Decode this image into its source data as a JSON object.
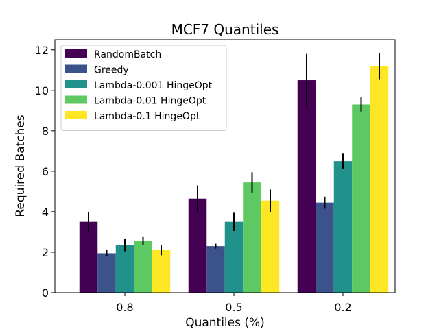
{
  "chart_data": {
    "type": "bar",
    "title": "MCF7 Quantiles",
    "xlabel": "Quantiles (%)",
    "ylabel": "Required Batches",
    "categories": [
      "0.8",
      "0.5",
      "0.2"
    ],
    "ylim": [
      0,
      12.5
    ],
    "yticks": [
      0,
      2,
      4,
      6,
      8,
      10,
      12
    ],
    "legend_position": "top-left",
    "series": [
      {
        "name": "RandomBatch",
        "color": "#440154",
        "values": [
          3.5,
          4.65,
          10.5
        ],
        "errors": [
          0.5,
          0.65,
          1.3
        ]
      },
      {
        "name": "Greedy",
        "color": "#3b528b",
        "values": [
          1.95,
          2.3,
          4.45
        ],
        "errors": [
          0.15,
          0.12,
          0.3
        ]
      },
      {
        "name": "Lambda-0.001 HingeOpt",
        "color": "#21918c",
        "values": [
          2.35,
          3.5,
          6.5
        ],
        "errors": [
          0.3,
          0.45,
          0.4
        ]
      },
      {
        "name": "Lambda-0.01 HingeOpt",
        "color": "#5ec962",
        "values": [
          2.55,
          5.45,
          9.3
        ],
        "errors": [
          0.2,
          0.5,
          0.35
        ]
      },
      {
        "name": "Lambda-0.1 HingeOpt",
        "color": "#fde725",
        "values": [
          2.1,
          4.55,
          11.2
        ],
        "errors": [
          0.25,
          0.55,
          0.65
        ]
      }
    ]
  }
}
